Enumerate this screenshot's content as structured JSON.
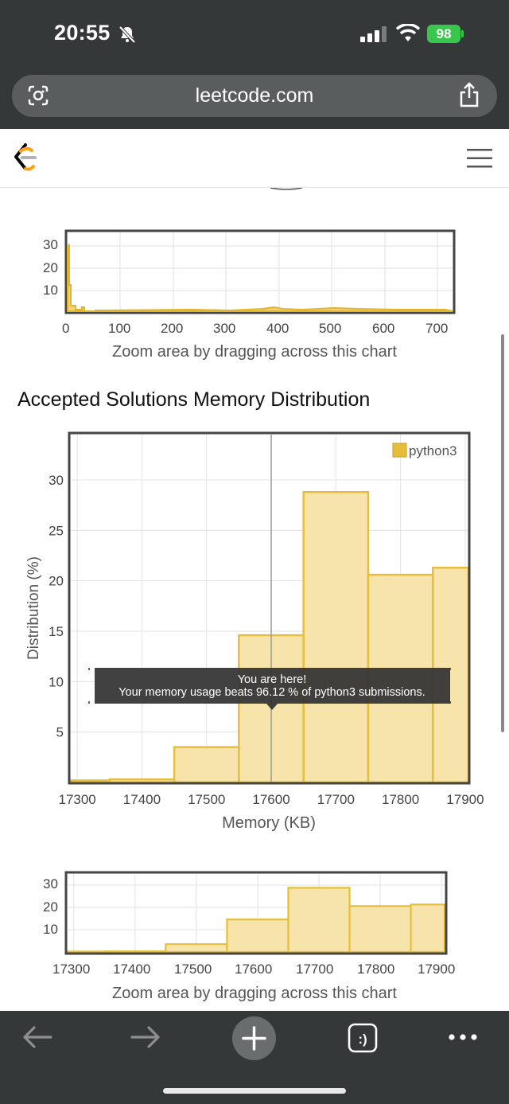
{
  "status_bar": {
    "time": "20:55",
    "battery": "98"
  },
  "browser": {
    "url": "leetcode.com"
  },
  "top_mini_chart": {
    "y_ticks": [
      "30",
      "20",
      "10"
    ],
    "x_ticks": [
      "0",
      "100",
      "200",
      "300",
      "400",
      "500",
      "600",
      "700"
    ],
    "caption": "Zoom area by dragging across this chart"
  },
  "section_title": "Accepted Solutions Memory Distribution",
  "chart_data": {
    "type": "bar",
    "title": "Accepted Solutions Memory Distribution",
    "xlabel": "Memory (KB)",
    "ylabel": "Distribution (%)",
    "legend": "python3",
    "legend_position": "top-right",
    "x_ticks": [
      "17300",
      "17400",
      "17500",
      "17600",
      "17700",
      "17800",
      "17900"
    ],
    "y_ticks": [
      "5",
      "10",
      "15",
      "20",
      "25",
      "30"
    ],
    "xlim": [
      17290,
      17905
    ],
    "ylim": [
      0,
      34.5
    ],
    "grid": true,
    "bins": [
      {
        "from": 17290,
        "to": 17350,
        "value": 0.2
      },
      {
        "from": 17350,
        "to": 17450,
        "value": 0.3
      },
      {
        "from": 17450,
        "to": 17550,
        "value": 3.5
      },
      {
        "from": 17550,
        "to": 17650,
        "value": 14.6
      },
      {
        "from": 17650,
        "to": 17750,
        "value": 28.8
      },
      {
        "from": 17750,
        "to": 17850,
        "value": 20.6
      },
      {
        "from": 17850,
        "to": 17910,
        "value": 21.3
      }
    ],
    "bar_color": "#e7be3c",
    "bar_fill": "#f7e4ab",
    "marker_x": 17600,
    "tooltip_line1": "You are here!",
    "tooltip_line2": "Your memory usage beats 96.12 % of python3 submissions."
  },
  "bottom_mini_chart": {
    "y_ticks": [
      "30",
      "20",
      "10"
    ],
    "x_ticks": [
      "17300",
      "17400",
      "17500",
      "17600",
      "17700",
      "17800",
      "17900"
    ],
    "caption": "Zoom area by dragging across this chart"
  }
}
